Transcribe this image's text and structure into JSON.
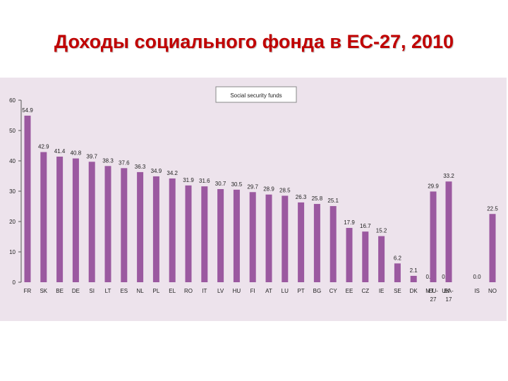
{
  "slide": {
    "title": "Доходы социального фонда в ЕС-27, 2010"
  },
  "colors": {
    "plot_background": "#ede3ec",
    "bar": "#9b59a0",
    "text": "#222222",
    "title": "#c00000"
  },
  "chart_data": {
    "type": "bar",
    "title": "",
    "xlabel": "",
    "ylabel": "",
    "ylim": [
      0,
      60
    ],
    "yticks": [
      "0",
      "10",
      "20",
      "30",
      "40",
      "50",
      "60"
    ],
    "grid": false,
    "legend": {
      "position": "top-center",
      "label": "Social security funds"
    },
    "categories": [
      {
        "label": "FR",
        "value": 54.9,
        "value_label": "54.9"
      },
      {
        "label": "SK",
        "value": 42.9,
        "value_label": "42.9"
      },
      {
        "label": "BE",
        "value": 41.4,
        "value_label": "41.4"
      },
      {
        "label": "DE",
        "value": 40.8,
        "value_label": "40.8"
      },
      {
        "label": "SI",
        "value": 39.7,
        "value_label": "39.7"
      },
      {
        "label": "LT",
        "value": 38.3,
        "value_label": "38.3"
      },
      {
        "label": "ES",
        "value": 37.6,
        "value_label": "37.6"
      },
      {
        "label": "NL",
        "value": 36.3,
        "value_label": "36.3"
      },
      {
        "label": "PL",
        "value": 34.9,
        "value_label": "34.9"
      },
      {
        "label": "EL",
        "value": 34.2,
        "value_label": "34.2"
      },
      {
        "label": "RO",
        "value": 31.9,
        "value_label": "31.9"
      },
      {
        "label": "IT",
        "value": 31.6,
        "value_label": "31.6"
      },
      {
        "label": "LV",
        "value": 30.7,
        "value_label": "30.7"
      },
      {
        "label": "HU",
        "value": 30.5,
        "value_label": "30.5"
      },
      {
        "label": "FI",
        "value": 29.7,
        "value_label": "29.7"
      },
      {
        "label": "AT",
        "value": 28.9,
        "value_label": "28.9"
      },
      {
        "label": "LU",
        "value": 28.5,
        "value_label": "28.5"
      },
      {
        "label": "PT",
        "value": 26.3,
        "value_label": "26.3"
      },
      {
        "label": "BG",
        "value": 25.8,
        "value_label": "25.8"
      },
      {
        "label": "CY",
        "value": 25.1,
        "value_label": "25.1"
      },
      {
        "label": "EE",
        "value": 17.9,
        "value_label": "17.9"
      },
      {
        "label": "CZ",
        "value": 16.7,
        "value_label": "16.7"
      },
      {
        "label": "IE",
        "value": 15.2,
        "value_label": "15.2"
      },
      {
        "label": "SE",
        "value": 6.2,
        "value_label": "6.2"
      },
      {
        "label": "DK",
        "value": 2.1,
        "value_label": "2.1"
      },
      {
        "label": "MT",
        "value": 0.0,
        "value_label": "0.0"
      },
      {
        "label": "UK",
        "value": 0.0,
        "value_label": "0.0"
      },
      {
        "label": "EU-27",
        "value": 29.9,
        "value_label": "29.9",
        "group": "aggregate"
      },
      {
        "label": "EA-17",
        "value": 33.2,
        "value_label": "33.2",
        "group": "aggregate"
      },
      {
        "label": "IS",
        "value": 0.0,
        "value_label": "0.0",
        "group": "efta"
      },
      {
        "label": "NO",
        "value": 22.5,
        "value_label": "22.5",
        "group": "efta"
      }
    ]
  }
}
